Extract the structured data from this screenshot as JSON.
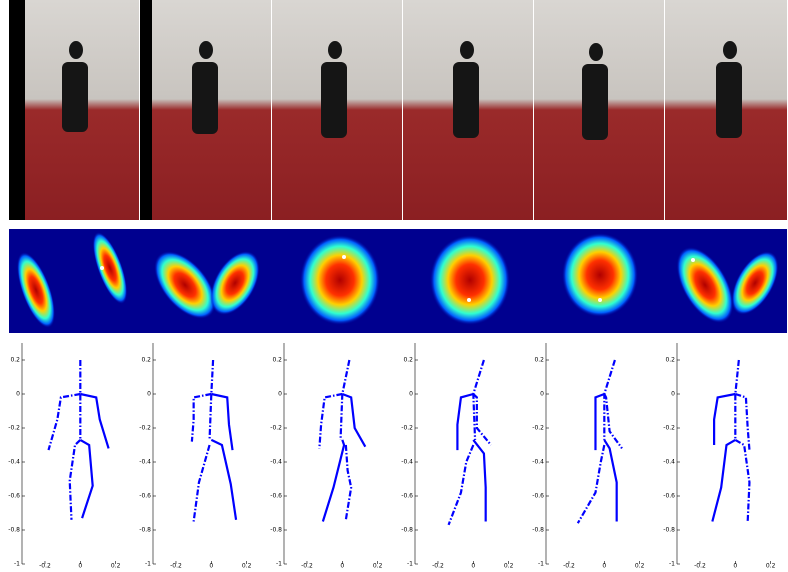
{
  "chart_data": [
    {
      "type": "line",
      "xlim": [
        -0.33,
        0.4
      ],
      "ylim": [
        -1,
        0.3
      ],
      "xticks": [
        -0.2,
        0,
        0.2
      ],
      "yticks": [
        0.2,
        0,
        -0.2,
        -0.4,
        -0.6,
        -0.8,
        -1
      ],
      "series": [
        {
          "color": "#0000ff",
          "style": "dashdot",
          "x": [
            0,
            0,
            0
          ],
          "y": [
            0.2,
            0,
            -0.27
          ]
        },
        {
          "color": "#0000ff",
          "style": "dashdot",
          "x": [
            0,
            -0.11,
            -0.13,
            -0.18
          ],
          "y": [
            0,
            -0.02,
            -0.15,
            -0.33
          ]
        },
        {
          "color": "#0000ff",
          "style": "solid",
          "x": [
            0,
            0.09,
            0.11,
            0.16
          ],
          "y": [
            0,
            -0.02,
            -0.15,
            -0.32
          ]
        },
        {
          "color": "#0000ff",
          "style": "solid",
          "x": [
            0,
            0.05,
            0.07,
            0.01
          ],
          "y": [
            -0.27,
            -0.3,
            -0.54,
            -0.73
          ]
        },
        {
          "color": "#0000ff",
          "style": "dashdot",
          "x": [
            0,
            -0.03,
            -0.06,
            -0.05
          ],
          "y": [
            -0.27,
            -0.3,
            -0.51,
            -0.74
          ]
        }
      ]
    },
    {
      "type": "line",
      "xlim": [
        -0.33,
        0.4
      ],
      "ylim": [
        -1,
        0.3
      ],
      "xticks": [
        -0.2,
        0,
        0.2
      ],
      "yticks": [
        0.2,
        0,
        -0.2,
        -0.4,
        -0.6,
        -0.8,
        -1
      ],
      "series": [
        {
          "color": "#0000ff",
          "style": "dashdot",
          "x": [
            0.01,
            0,
            -0.01
          ],
          "y": [
            0.2,
            0,
            -0.27
          ]
        },
        {
          "color": "#0000ff",
          "style": "dashdot",
          "x": [
            0,
            -0.1,
            -0.1,
            -0.11
          ],
          "y": [
            0,
            -0.02,
            -0.15,
            -0.28
          ]
        },
        {
          "color": "#0000ff",
          "style": "solid",
          "x": [
            0,
            0.09,
            0.1,
            0.12
          ],
          "y": [
            0,
            -0.02,
            -0.18,
            -0.33
          ]
        },
        {
          "color": "#0000ff",
          "style": "solid",
          "x": [
            0,
            0.06,
            0.11,
            0.14
          ],
          "y": [
            -0.27,
            -0.3,
            -0.53,
            -0.74
          ]
        },
        {
          "color": "#0000ff",
          "style": "dashdot",
          "x": [
            -0.01,
            -0.07,
            -0.1
          ],
          "y": [
            -0.3,
            -0.52,
            -0.75
          ]
        }
      ]
    },
    {
      "type": "line",
      "xlim": [
        -0.33,
        0.4
      ],
      "ylim": [
        -1,
        0.3
      ],
      "xticks": [
        -0.2,
        0,
        0.2
      ],
      "yticks": [
        0.2,
        0,
        -0.2,
        -0.4,
        -0.6,
        -0.8,
        -1
      ],
      "series": [
        {
          "color": "#0000ff",
          "style": "dashdot",
          "x": [
            0.04,
            0,
            -0.01
          ],
          "y": [
            0.2,
            0,
            -0.27
          ]
        },
        {
          "color": "#0000ff",
          "style": "dashdot",
          "x": [
            0,
            -0.1,
            -0.12,
            -0.13
          ],
          "y": [
            0,
            -0.02,
            -0.18,
            -0.32
          ]
        },
        {
          "color": "#0000ff",
          "style": "solid",
          "x": [
            0,
            0.05,
            0.07,
            0.13
          ],
          "y": [
            0,
            -0.02,
            -0.2,
            -0.31
          ]
        },
        {
          "color": "#0000ff",
          "style": "solid",
          "x": [
            0,
            0.01,
            -0.05,
            -0.11
          ],
          "y": [
            -0.27,
            -0.3,
            -0.55,
            -0.75
          ]
        },
        {
          "color": "#0000ff",
          "style": "dashdot",
          "x": [
            0.02,
            0.03,
            0.05,
            0.02
          ],
          "y": [
            -0.3,
            -0.45,
            -0.55,
            -0.74
          ]
        }
      ]
    },
    {
      "type": "line",
      "xlim": [
        -0.33,
        0.4
      ],
      "ylim": [
        -1,
        0.3
      ],
      "xticks": [
        -0.2,
        0,
        0.2
      ],
      "yticks": [
        0.2,
        0,
        -0.2,
        -0.4,
        -0.6,
        -0.8,
        -1
      ],
      "series": [
        {
          "color": "#0000ff",
          "style": "dashdot",
          "x": [
            0.06,
            0,
            0.01
          ],
          "y": [
            0.2,
            0,
            -0.27
          ]
        },
        {
          "color": "#0000ff",
          "style": "solid",
          "x": [
            0,
            -0.07,
            -0.09,
            -0.09
          ],
          "y": [
            0,
            -0.02,
            -0.18,
            -0.33
          ]
        },
        {
          "color": "#0000ff",
          "style": "dashdot",
          "x": [
            0,
            0.02,
            0.02,
            0.1
          ],
          "y": [
            0,
            -0.02,
            -0.2,
            -0.3
          ]
        },
        {
          "color": "#0000ff",
          "style": "solid",
          "x": [
            0,
            0.06,
            0.07,
            0.07
          ],
          "y": [
            -0.27,
            -0.35,
            -0.55,
            -0.75
          ]
        },
        {
          "color": "#0000ff",
          "style": "dashdot",
          "x": [
            0,
            -0.04,
            -0.07,
            -0.14
          ],
          "y": [
            -0.3,
            -0.4,
            -0.58,
            -0.77
          ]
        }
      ]
    },
    {
      "type": "line",
      "xlim": [
        -0.33,
        0.4
      ],
      "ylim": [
        -1,
        0.3
      ],
      "xticks": [
        -0.2,
        0,
        0.2
      ],
      "yticks": [
        0.2,
        0,
        -0.2,
        -0.4,
        -0.6,
        -0.8,
        -1
      ],
      "series": [
        {
          "color": "#0000ff",
          "style": "dashdot",
          "x": [
            0.06,
            0,
            0
          ],
          "y": [
            0.2,
            0,
            -0.27
          ]
        },
        {
          "color": "#0000ff",
          "style": "solid",
          "x": [
            0,
            -0.05,
            -0.05,
            -0.05
          ],
          "y": [
            0,
            -0.02,
            -0.2,
            -0.33
          ]
        },
        {
          "color": "#0000ff",
          "style": "dashdot",
          "x": [
            0,
            0.01,
            0.03,
            0.1
          ],
          "y": [
            0,
            -0.02,
            -0.22,
            -0.32
          ]
        },
        {
          "color": "#0000ff",
          "style": "solid",
          "x": [
            0,
            0.03,
            0.07,
            0.07
          ],
          "y": [
            -0.27,
            -0.32,
            -0.52,
            -0.75
          ]
        },
        {
          "color": "#0000ff",
          "style": "dashdot",
          "x": [
            0,
            -0.02,
            -0.05,
            -0.15
          ],
          "y": [
            -0.3,
            -0.4,
            -0.58,
            -0.76
          ]
        }
      ]
    },
    {
      "type": "line",
      "xlim": [
        -0.33,
        0.4
      ],
      "ylim": [
        -1,
        0.3
      ],
      "xticks": [
        -0.2,
        0,
        0.2
      ],
      "yticks": [
        0.2,
        0,
        -0.2,
        -0.4,
        -0.6,
        -0.8,
        -1
      ],
      "series": [
        {
          "color": "#0000ff",
          "style": "dashdot",
          "x": [
            0.02,
            0,
            0
          ],
          "y": [
            0.2,
            0,
            -0.27
          ]
        },
        {
          "color": "#0000ff",
          "style": "solid",
          "x": [
            0,
            -0.1,
            -0.12,
            -0.12
          ],
          "y": [
            0,
            -0.02,
            -0.15,
            -0.3
          ]
        },
        {
          "color": "#0000ff",
          "style": "dashdot",
          "x": [
            0,
            0.06,
            0.07,
            0.08
          ],
          "y": [
            0,
            -0.02,
            -0.2,
            -0.33
          ]
        },
        {
          "color": "#0000ff",
          "style": "solid",
          "x": [
            0,
            -0.05,
            -0.08,
            -0.13
          ],
          "y": [
            -0.27,
            -0.3,
            -0.55,
            -0.75
          ]
        },
        {
          "color": "#0000ff",
          "style": "dashdot",
          "x": [
            0,
            0.05,
            0.08,
            0.07
          ],
          "y": [
            -0.27,
            -0.3,
            -0.52,
            -0.75
          ]
        }
      ]
    }
  ]
}
